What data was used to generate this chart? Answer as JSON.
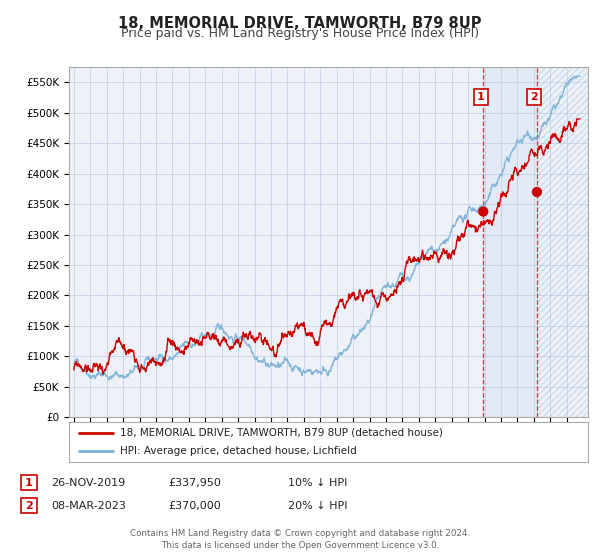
{
  "title": "18, MEMORIAL DRIVE, TAMWORTH, B79 8UP",
  "subtitle": "Price paid vs. HM Land Registry's House Price Index (HPI)",
  "title_fontsize": 10.5,
  "subtitle_fontsize": 9,
  "hpi_color": "#7aafd4",
  "price_color": "#cc0000",
  "background_color": "#ffffff",
  "grid_color": "#c8d8ec",
  "plot_bg_color": "#eef2f8",
  "ylim": [
    0,
    575000
  ],
  "xlim_start": 1994.7,
  "xlim_end": 2026.3,
  "sale1_x": 2019.92,
  "sale1_y": 337950,
  "sale2_x": 2023.19,
  "sale2_y": 370000,
  "legend_label1": "18, MEMORIAL DRIVE, TAMWORTH, B79 8UP (detached house)",
  "legend_label2": "HPI: Average price, detached house, Lichfield",
  "sale1_date": "26-NOV-2019",
  "sale1_price": "£337,950",
  "sale1_hpi": "10% ↓ HPI",
  "sale2_date": "08-MAR-2023",
  "sale2_price": "£370,000",
  "sale2_hpi": "20% ↓ HPI",
  "footer1": "Contains HM Land Registry data © Crown copyright and database right 2024.",
  "footer2": "This data is licensed under the Open Government Licence v3.0.",
  "yticks": [
    0,
    50000,
    100000,
    150000,
    200000,
    250000,
    300000,
    350000,
    400000,
    450000,
    500000,
    550000
  ],
  "ytick_labels": [
    "£0",
    "£50K",
    "£100K",
    "£150K",
    "£200K",
    "£250K",
    "£300K",
    "£350K",
    "£400K",
    "£450K",
    "£500K",
    "£550K"
  ]
}
